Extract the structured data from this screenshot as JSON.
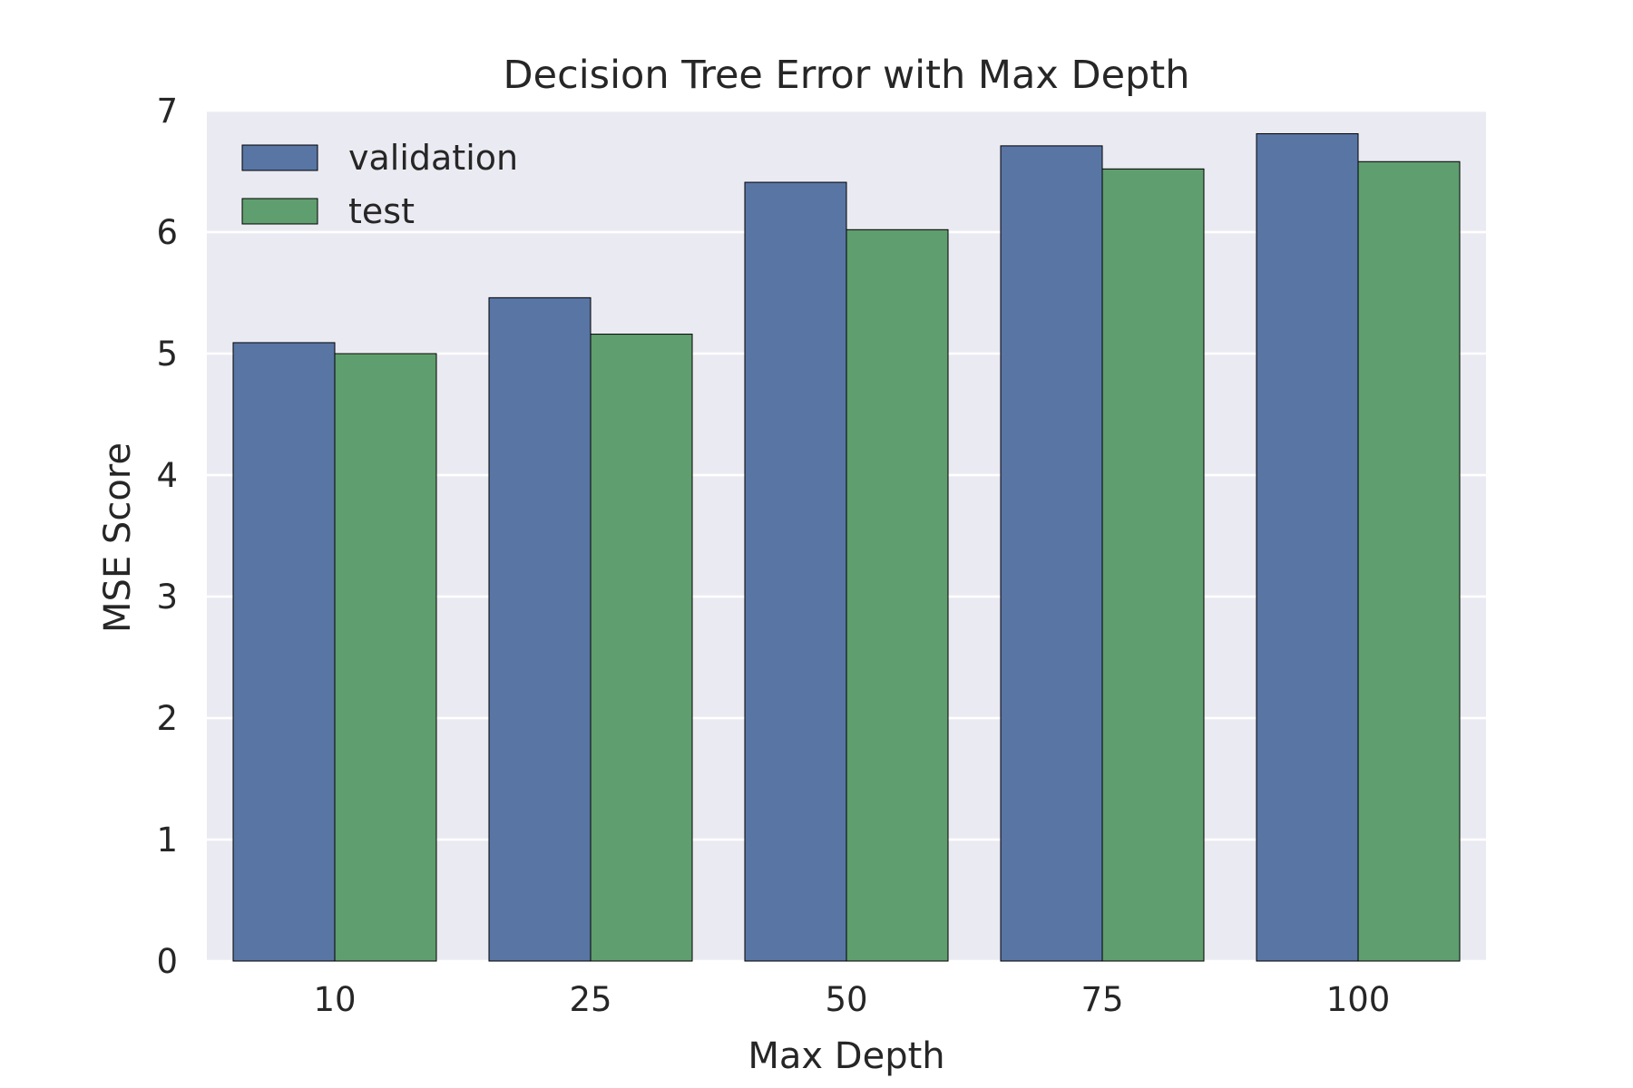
{
  "chart_data": {
    "type": "bar",
    "title": "Decision Tree Error with Max Depth",
    "xlabel": "Max Depth",
    "ylabel": "MSE Score",
    "categories": [
      "10",
      "25",
      "50",
      "75",
      "100"
    ],
    "series": [
      {
        "name": "validation",
        "color": "#5875a4",
        "values": [
          5.09,
          5.46,
          6.41,
          6.71,
          6.81
        ]
      },
      {
        "name": "test",
        "color": "#5f9e6e",
        "values": [
          5.0,
          5.16,
          6.02,
          6.52,
          6.58
        ]
      }
    ],
    "ylim": [
      0,
      7
    ],
    "yticks": [
      "0",
      "1",
      "2",
      "3",
      "4",
      "5",
      "6",
      "7"
    ],
    "grid": true,
    "legend_position": "top-left",
    "background_color": "#eaeaf2"
  }
}
